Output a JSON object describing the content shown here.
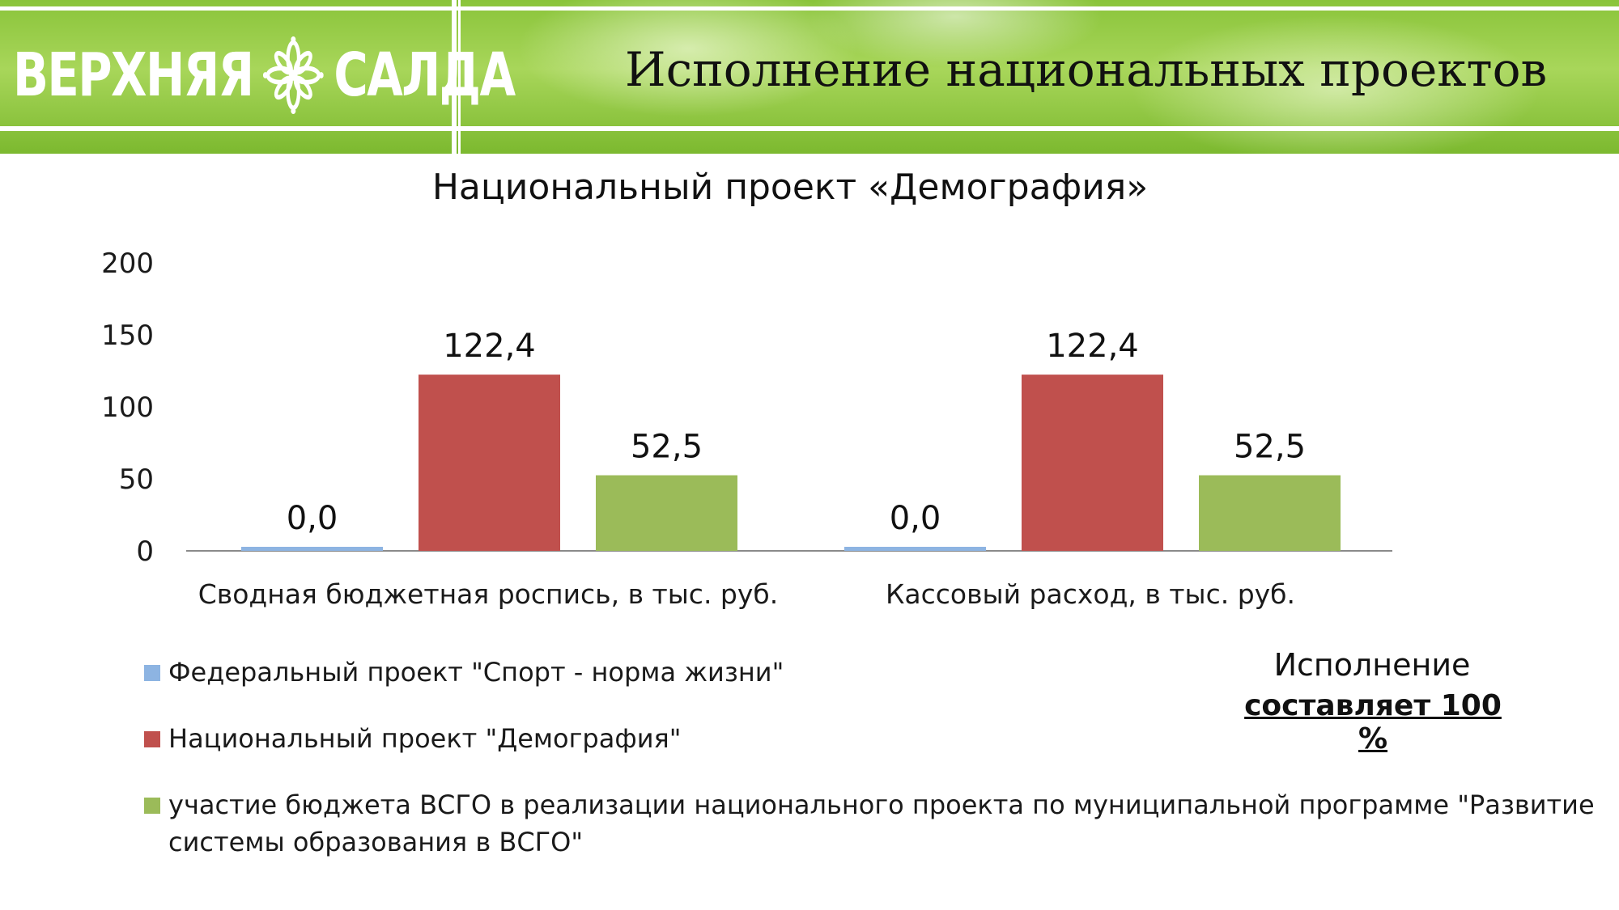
{
  "header": {
    "logo_text_left": "ВЕРХНЯЯ",
    "logo_text_right": "САЛДА",
    "title": "Исполнение национальных проектов"
  },
  "chart_data": {
    "type": "bar",
    "title": "Национальный проект «Демография»",
    "categories": [
      "Сводная бюджетная роспись, в тыс. руб.",
      "Кассовый расход, в тыс. руб."
    ],
    "series": [
      {
        "name": "Федеральный проект \"Спорт - норма жизни\"",
        "values": [
          0.0,
          0.0
        ],
        "labels": [
          "0,0",
          "0,0"
        ],
        "color": "#8db4e2"
      },
      {
        "name": "Национальный проект \"Демография\"",
        "values": [
          122.4,
          122.4
        ],
        "labels": [
          "122,4",
          "122,4"
        ],
        "color": "#c0504d"
      },
      {
        "name": "участие бюджета ВСГО в реализации национального проекта по муниципальной программе \"Развитие системы образования в ВСГО\"",
        "values": [
          52.5,
          52.5
        ],
        "labels": [
          "52,5",
          "52,5"
        ],
        "color": "#9bbb59"
      }
    ],
    "ylim": [
      0,
      200
    ],
    "yticks": [
      "0",
      "50",
      "100",
      "150",
      "200"
    ],
    "legend_position": "bottom-left",
    "grid": false
  },
  "legend": {
    "items": [
      {
        "line1": "Федеральный проект \"Спорт - норма жизни\"",
        "line2": ""
      },
      {
        "line1": "Национальный проект \"Демография\"",
        "line2": ""
      },
      {
        "line1": "участие бюджета ВСГО в реализации национального проекта по муниципальной программе \"Развитие",
        "line2": "системы образования в ВСГО\""
      }
    ]
  },
  "note": {
    "line1": "Исполнение",
    "line2": "составляет 100 %"
  }
}
